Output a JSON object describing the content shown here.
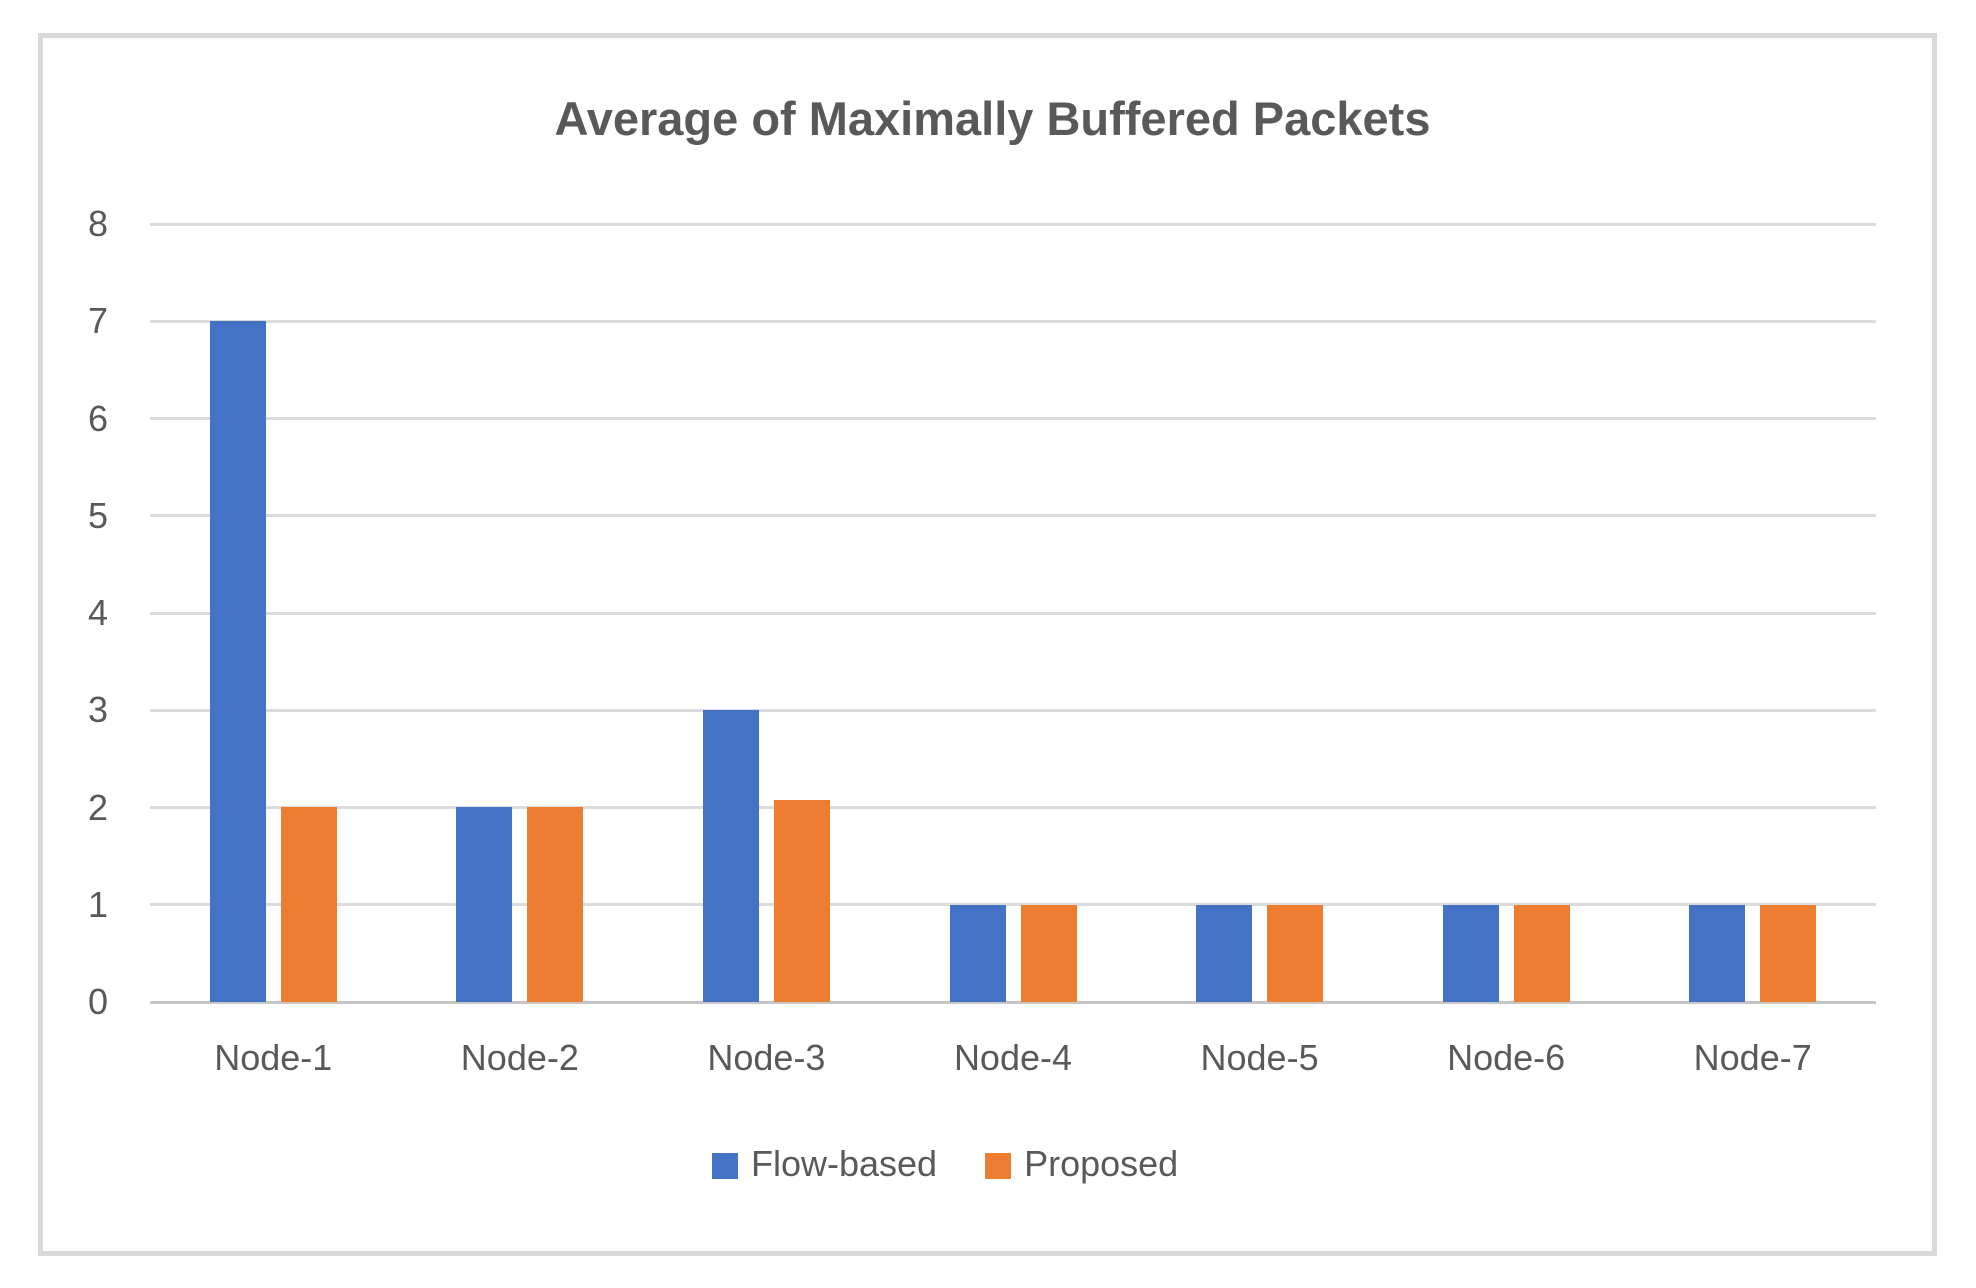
{
  "chart_data": {
    "type": "bar",
    "title": "Average of Maximally Buffered Packets",
    "categories": [
      "Node-1",
      "Node-2",
      "Node-3",
      "Node-4",
      "Node-5",
      "Node-6",
      "Node-7"
    ],
    "series": [
      {
        "name": "Flow-based",
        "color": "#4472C4",
        "values": [
          7,
          2,
          3,
          1,
          1,
          1,
          1
        ]
      },
      {
        "name": "Proposed",
        "color": "#ED7D31",
        "values": [
          2,
          2,
          2.08,
          1,
          1,
          1,
          1
        ]
      }
    ],
    "xlabel": "",
    "ylabel": "",
    "ylim": [
      0,
      8
    ],
    "yticks": [
      0,
      1,
      2,
      3,
      4,
      5,
      6,
      7,
      8
    ],
    "grid": true,
    "legend_position": "bottom",
    "colors": {
      "gridline": "#dbdbdb",
      "axis_line": "#c6c6c6",
      "text": "#595959",
      "frame_border": "#d9d9d9",
      "background": "#ffffff"
    }
  }
}
